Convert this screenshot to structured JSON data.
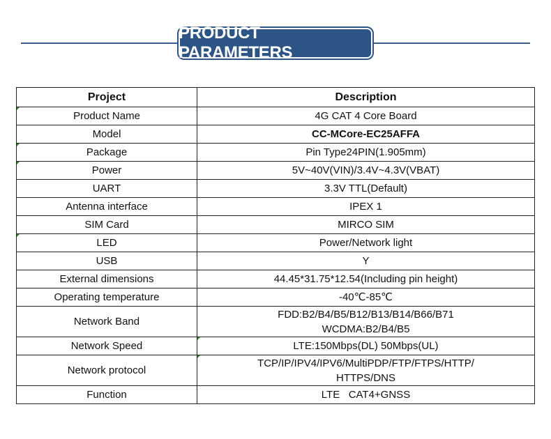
{
  "banner": {
    "title": "PRODUCT PARAMETERS"
  },
  "table": {
    "headers": [
      "Project",
      "Description"
    ],
    "rows": [
      {
        "project": "Product Name",
        "description": [
          "4G CAT 4 Core Board"
        ]
      },
      {
        "project": "Model",
        "description": [
          "CC-MCore-EC25AFFA"
        ]
      },
      {
        "project": "Package",
        "description": [
          "Pin Type24PIN(1.905mm)"
        ]
      },
      {
        "project": "Power",
        "description": [
          "5V~40V(VIN)/3.4V~4.3V(VBAT)"
        ]
      },
      {
        "project": "UART",
        "description": [
          "3.3V TTL(Default)"
        ]
      },
      {
        "project": "Antenna interface",
        "description": [
          "IPEX 1"
        ]
      },
      {
        "project": "SIM Card",
        "description": [
          "MIRCO SIM"
        ]
      },
      {
        "project": "LED",
        "description": [
          "Power/Network light"
        ]
      },
      {
        "project": "USB",
        "description": [
          "Y"
        ]
      },
      {
        "project": "External dimensions",
        "description": [
          "44.45*31.75*12.54(Including pin height)"
        ]
      },
      {
        "project": "Operating temperature",
        "description": [
          "-40℃-85℃"
        ]
      },
      {
        "project": "Network Band",
        "description": [
          "FDD:B2/B4/B5/B12/B13/B14/B66/B71",
          "WCDMA:B2/B4/B5"
        ]
      },
      {
        "project": "Network Speed",
        "description": [
          "LTE:150Mbps(DL)  50Mbps(UL)"
        ]
      },
      {
        "project": "Network protocol",
        "description": [
          "TCP/IP/IPV4/IPV6/MultiPDP/FTP/FTPS/HTTP/",
          "HTTPS/DNS"
        ]
      },
      {
        "project": "Function",
        "description": [
          "LTE   CAT4+GNSS"
        ]
      }
    ]
  }
}
